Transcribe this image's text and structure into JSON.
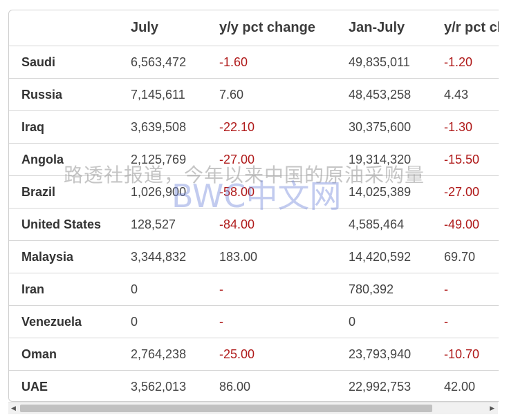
{
  "table": {
    "headers": [
      "",
      "July",
      "y/y pct change",
      "Jan-July",
      "y/r pct change"
    ],
    "rows": [
      {
        "country": "Saudi",
        "july": "6,563,472",
        "yy": "-1.60",
        "janjuly": "49,835,011",
        "yr": "-1.20"
      },
      {
        "country": "Russia",
        "july": "7,145,611",
        "yy": "7.60",
        "janjuly": "48,453,258",
        "yr": "4.43"
      },
      {
        "country": "Iraq",
        "july": "3,639,508",
        "yy": "-22.10",
        "janjuly": "30,375,600",
        "yr": "-1.30"
      },
      {
        "country": "Angola",
        "july": "2,125,769",
        "yy": "-27.00",
        "janjuly": "19,314,320",
        "yr": "-15.50"
      },
      {
        "country": "Brazil",
        "july": "1,026,900",
        "yy": "-58.00",
        "janjuly": "14,025,389",
        "yr": "-27.00"
      },
      {
        "country": "United States",
        "july": "128,527",
        "yy": "-84.00",
        "janjuly": "4,585,464",
        "yr": "-49.00"
      },
      {
        "country": "Malaysia",
        "july": "3,344,832",
        "yy": "183.00",
        "janjuly": "14,420,592",
        "yr": "69.70"
      },
      {
        "country": "Iran",
        "july": "0",
        "yy": "-",
        "janjuly": "780,392",
        "yr": "-"
      },
      {
        "country": "Venezuela",
        "july": "0",
        "yy": "-",
        "janjuly": "0",
        "yr": "-"
      },
      {
        "country": "Oman",
        "july": "2,764,238",
        "yy": "-25.00",
        "janjuly": "23,793,940",
        "yr": "-10.70"
      },
      {
        "country": "UAE",
        "july": "3,562,013",
        "yy": "86.00",
        "janjuly": "22,992,753",
        "yr": "42.00"
      }
    ]
  },
  "watermark": {
    "line1": "路透社报道，今年以来中国的原油采购量",
    "line2": "BWC中文网"
  },
  "scrollbar": {
    "left_arrow": "◀",
    "right_arrow": "▶"
  },
  "colors": {
    "negative": "#b01b1b",
    "text": "#444444",
    "border": "#d6d6d6"
  }
}
